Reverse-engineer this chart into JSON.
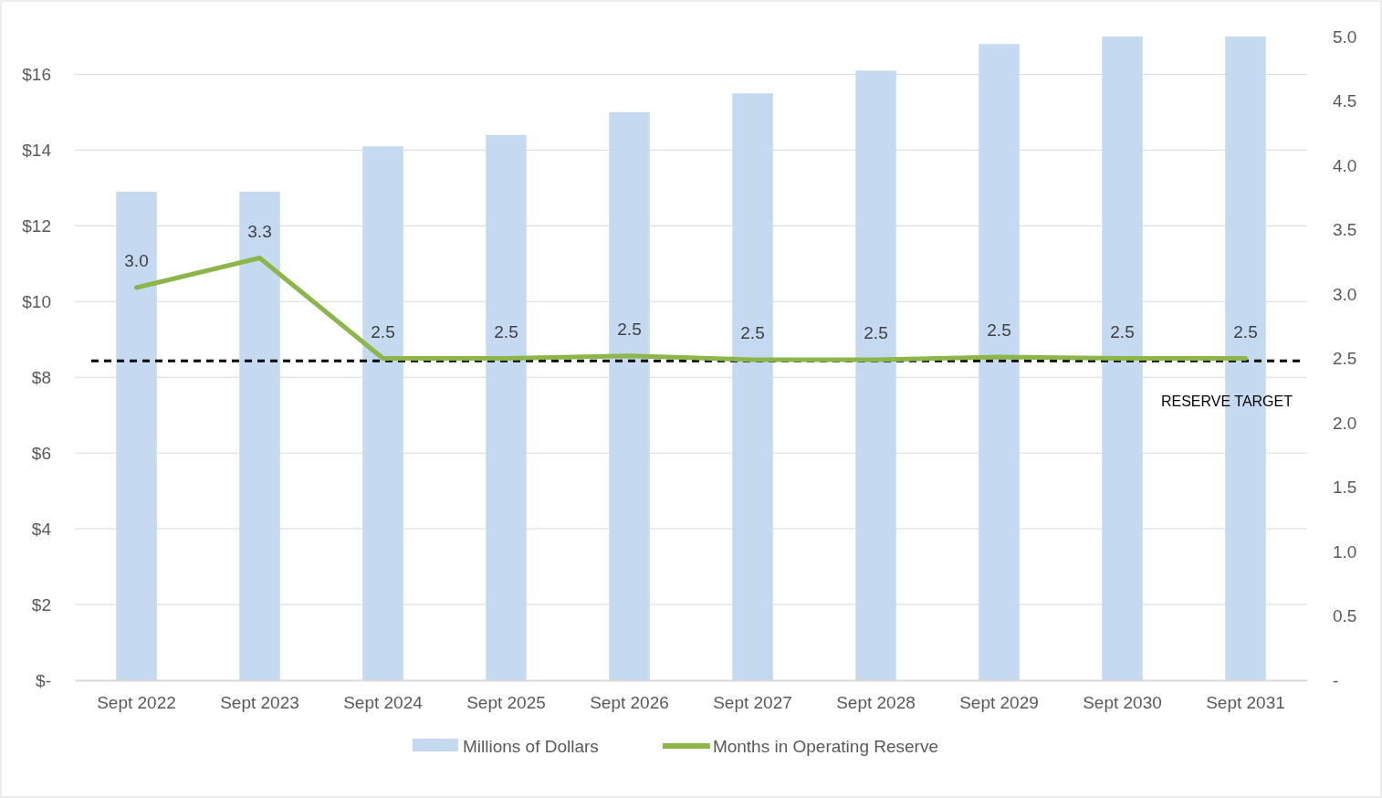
{
  "chart_data": {
    "type": "bar",
    "categories": [
      "Sept 2022",
      "Sept 2023",
      "Sept 2024",
      "Sept 2025",
      "Sept 2026",
      "Sept 2027",
      "Sept 2028",
      "Sept 2029",
      "Sept 2030",
      "Sept 2031"
    ],
    "series": [
      {
        "name": "Millions of Dollars",
        "color": "#c5d9f1",
        "values": [
          12.9,
          12.9,
          14.1,
          14.4,
          15.0,
          15.5,
          16.1,
          16.8,
          17.0,
          17.0
        ]
      },
      {
        "name": "Months in Operating Reserve",
        "type": "line",
        "axis": "y2",
        "color": "#8cb64a",
        "values": [
          3.05,
          3.28,
          2.5,
          2.5,
          2.52,
          2.49,
          2.49,
          2.51,
          2.5,
          2.5
        ],
        "value_labels": [
          "3.0",
          "3.3",
          "2.5",
          "2.5",
          "2.5",
          "2.5",
          "2.5",
          "2.5",
          "2.5",
          "2.5"
        ]
      }
    ],
    "ylim": [
      0,
      17
    ],
    "yticks": [
      {
        "value": 0,
        "label": "$-"
      },
      {
        "value": 2,
        "label": "$2"
      },
      {
        "value": 4,
        "label": "$4"
      },
      {
        "value": 6,
        "label": "$6"
      },
      {
        "value": 8,
        "label": "$8"
      },
      {
        "value": 10,
        "label": "$10"
      },
      {
        "value": 12,
        "label": "$12"
      },
      {
        "value": 14,
        "label": "$14"
      },
      {
        "value": 16,
        "label": "$16"
      }
    ],
    "y2lim": [
      0,
      5
    ],
    "y2ticks": [
      {
        "value": 0,
        "label": "-"
      },
      {
        "value": 0.5,
        "label": "0.5"
      },
      {
        "value": 1,
        "label": "1.0"
      },
      {
        "value": 1.5,
        "label": "1.5"
      },
      {
        "value": 2,
        "label": "2.0"
      },
      {
        "value": 2.5,
        "label": "2.5"
      },
      {
        "value": 3,
        "label": "3.0"
      },
      {
        "value": 3.5,
        "label": "3.5"
      },
      {
        "value": 4,
        "label": "4.0"
      },
      {
        "value": 4.5,
        "label": "4.5"
      },
      {
        "value": 5,
        "label": "5.0"
      }
    ],
    "ref_lines": [
      {
        "axis": "y2",
        "value": 2.48,
        "label": "RESERVE TARGET",
        "color": "#000000",
        "line_style": "dashed"
      }
    ],
    "grid": "y",
    "legend": "bottom",
    "marker": "none",
    "line_style": "solid"
  }
}
